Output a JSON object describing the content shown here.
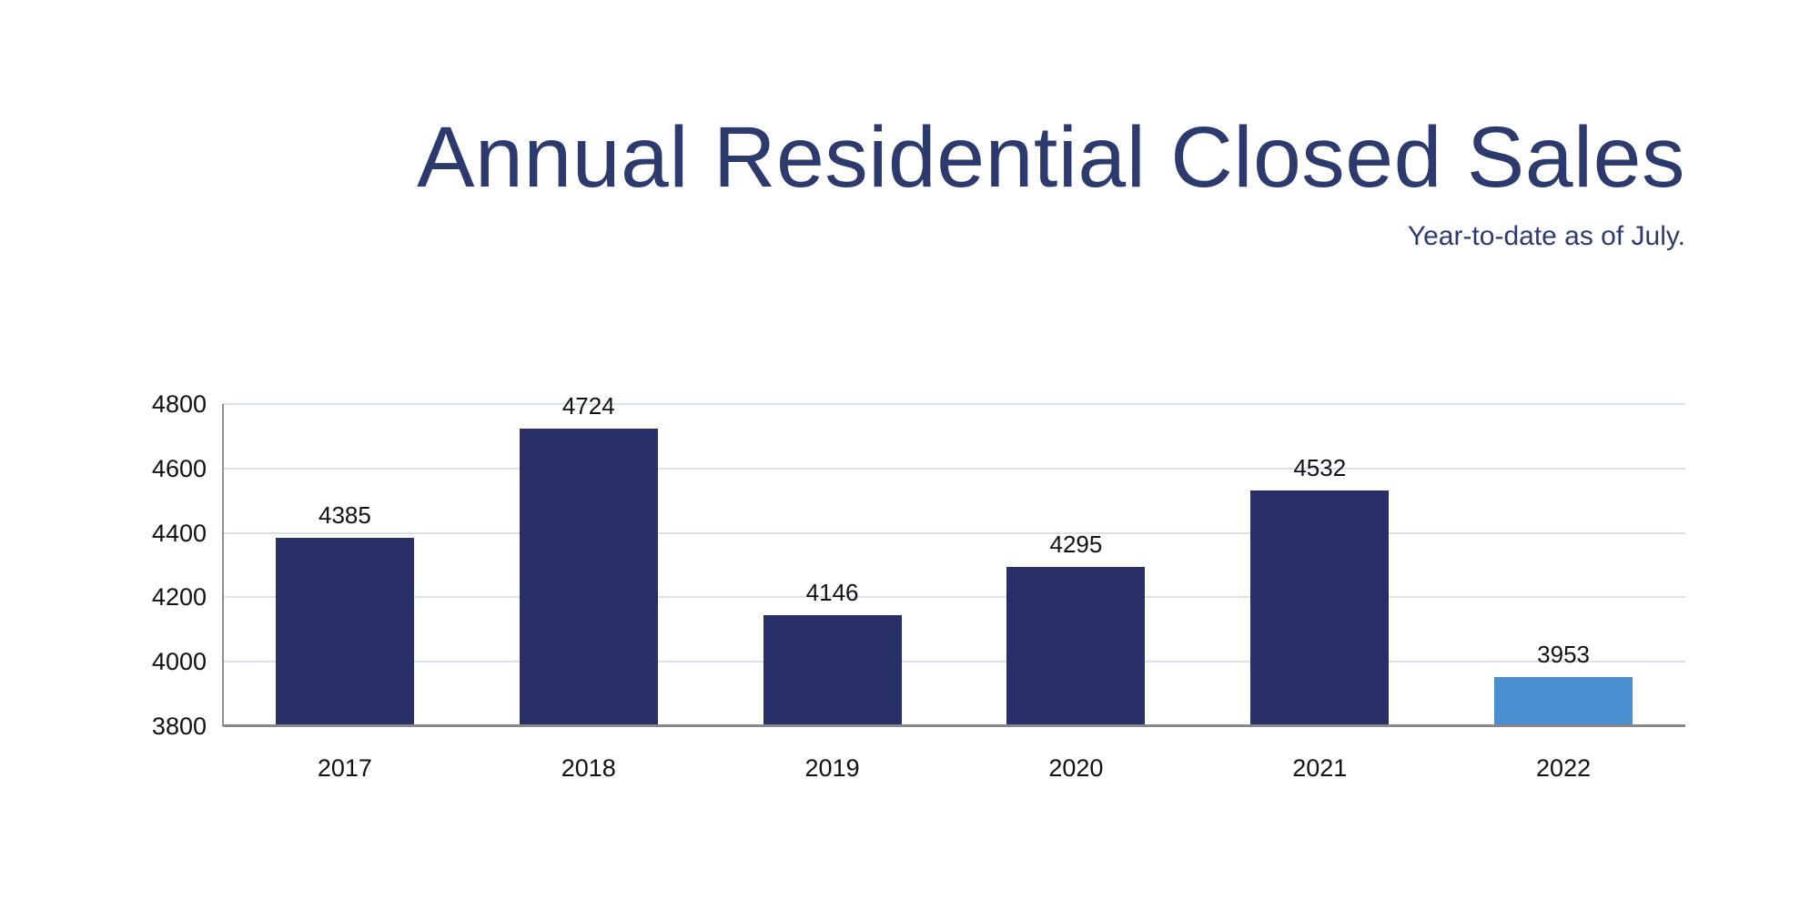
{
  "chart_data": {
    "type": "bar",
    "title": "Annual Residential Closed Sales",
    "subtitle": "Year-to-date as of July.",
    "categories": [
      "2017",
      "2018",
      "2019",
      "2020",
      "2021",
      "2022"
    ],
    "values": [
      4385,
      4724,
      4146,
      4295,
      4532,
      3953
    ],
    "bar_colors": [
      "#272f66",
      "#272f66",
      "#272f66",
      "#272f66",
      "#272f66",
      "#4a8fd0"
    ],
    "yticks": [
      3800,
      4000,
      4200,
      4400,
      4600,
      4800
    ],
    "ylim": [
      3800,
      4800
    ],
    "grid": true,
    "legend": "none",
    "data_labels": true,
    "xlabel": "",
    "ylabel": ""
  },
  "colors": {
    "title_text": "#2d3a6e",
    "bar_primary": "#272f66",
    "bar_highlight": "#4a8fd0",
    "gridline": "#dcdfec",
    "axis_line": "#8f9097",
    "baseline": "#85878c",
    "label_text": "#111111",
    "background": "#ffffff"
  }
}
